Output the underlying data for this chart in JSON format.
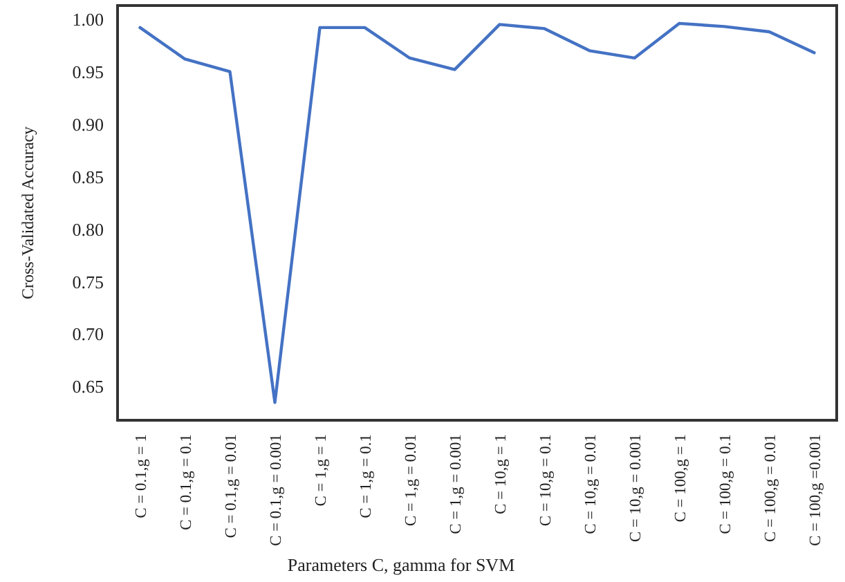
{
  "chart_data": {
    "type": "line",
    "xlabel": "Parameters C, gamma for SVM",
    "ylabel": "Cross-Validated Accuracy",
    "categories": [
      "C = 0.1,g = 1",
      "C = 0.1,g = 0.1",
      "C = 0.1,g = 0.01",
      "C = 0.1,g = 0.001",
      "C = 1,g = 1",
      "C = 1,g = 0.1",
      "C = 1,g = 0.01",
      "C = 1,g = 0.001",
      "C = 10,g = 1",
      "C = 10,g = 0.1",
      "C = 10,g = 0.01",
      "C = 10,g = 0.001",
      "C = 100,g = 1",
      "C = 100,g = 0.1",
      "C = 100,g = 0.01",
      "C = 100,g =0.001"
    ],
    "series": [
      {
        "color": "#4472c4",
        "values": [
          0.994,
          0.964,
          0.952,
          0.637,
          0.994,
          0.994,
          0.965,
          0.954,
          0.997,
          0.993,
          0.972,
          0.965,
          0.998,
          0.995,
          0.99,
          0.97
        ]
      }
    ],
    "ylim": [
      0.62,
      1.015
    ],
    "yticks": [
      {
        "value": 0.65,
        "label": "0.65"
      },
      {
        "value": 0.7,
        "label": "0.70"
      },
      {
        "value": 0.75,
        "label": "0.75"
      },
      {
        "value": 0.8,
        "label": "0.80"
      },
      {
        "value": 0.85,
        "label": "0.85"
      },
      {
        "value": 0.9,
        "label": "0.90"
      },
      {
        "value": 0.95,
        "label": "0.95"
      },
      {
        "value": 1,
        "label": "1.00"
      }
    ],
    "marker": "none",
    "line_style": "solid"
  }
}
